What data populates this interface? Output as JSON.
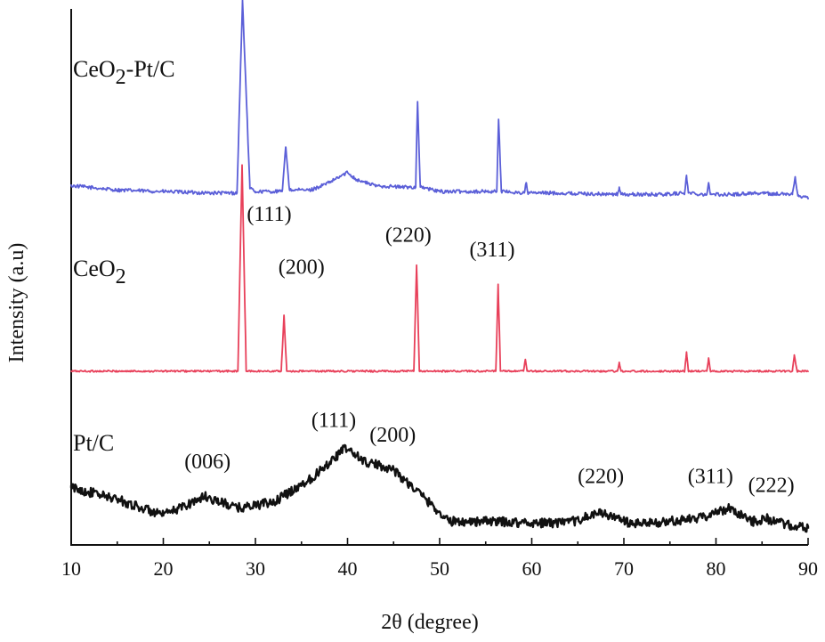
{
  "chart_data": {
    "type": "line",
    "xlabel": "2θ (degree)",
    "ylabel": "Intensity (a.u)",
    "xlim": [
      10,
      90
    ],
    "x_ticks": [
      "10",
      "20",
      "30",
      "40",
      "50",
      "60",
      "70",
      "80",
      "90"
    ],
    "grid": false,
    "colors": {
      "CeO2-Pt/C": "#5b5fd8",
      "CeO2": "#e8405a",
      "Pt/C": "#111111"
    },
    "series": [
      {
        "name": "CeO2-Pt/C",
        "label_main": "CeO",
        "label_sub": "2",
        "label_tail": "-Pt/C",
        "color": "#5b5fd8",
        "baseline": 1.0,
        "noise": 0.06,
        "x": [
          10,
          15,
          20,
          25,
          28.0,
          28.6,
          29.4,
          30,
          32.9,
          33.3,
          33.7,
          36,
          38,
          40,
          41,
          43,
          46,
          47.4,
          47.6,
          47.9,
          50,
          55,
          56.2,
          56.4,
          56.7,
          59.2,
          59.4,
          59.6,
          62,
          69.3,
          69.5,
          69.7,
          74,
          76.6,
          76.8,
          77.0,
          79.0,
          79.2,
          79.4,
          82,
          84,
          88.3,
          88.6,
          88.9,
          90
        ],
        "y": [
          1.0,
          0.85,
          0.8,
          0.75,
          0.75,
          7.3,
          0.9,
          0.8,
          0.8,
          2.3,
          0.85,
          0.85,
          1.1,
          1.45,
          1.2,
          1.0,
          0.95,
          0.95,
          3.85,
          0.95,
          0.8,
          0.8,
          0.8,
          3.25,
          0.8,
          0.75,
          1.1,
          0.75,
          0.75,
          0.7,
          0.95,
          0.7,
          0.7,
          0.75,
          1.35,
          0.75,
          0.7,
          1.1,
          0.7,
          0.7,
          0.75,
          0.7,
          1.3,
          0.65,
          0.6
        ]
      },
      {
        "name": "CeO2",
        "label_main": "CeO",
        "label_sub": "2",
        "label_tail": "",
        "color": "#e8405a",
        "baseline": -4.3,
        "noise": 0.03,
        "x": [
          10,
          20,
          28.1,
          28.55,
          29.0,
          32.8,
          33.1,
          33.4,
          47.2,
          47.5,
          47.8,
          56.1,
          56.35,
          56.6,
          59.1,
          59.3,
          59.5,
          69.3,
          69.5,
          69.7,
          76.6,
          76.8,
          77.0,
          79.0,
          79.2,
          79.4,
          88.3,
          88.5,
          88.8,
          90
        ],
        "y": [
          0.0,
          0.0,
          0.0,
          7.0,
          0.0,
          0.0,
          1.9,
          0.0,
          0.0,
          3.6,
          0.0,
          0.0,
          2.95,
          0.0,
          0.0,
          0.4,
          0.0,
          0.0,
          0.3,
          0.0,
          0.0,
          0.65,
          0.0,
          0.0,
          0.45,
          0.0,
          0.0,
          0.55,
          0.0,
          0.0
        ]
      },
      {
        "name": "Pt/C",
        "label_main": "Pt/C",
        "label_sub": "",
        "label_tail": "",
        "color": "#111111",
        "baseline": -9.5,
        "noise": 0.16,
        "x": [
          10,
          15,
          20,
          24.5,
          28,
          32,
          36,
          39.8,
          42,
          44.8,
          48,
          51,
          55,
          60,
          64,
          67.5,
          71,
          75,
          78,
          81.5,
          84,
          85.5,
          88,
          90
        ],
        "y": [
          1.25,
          0.85,
          0.3,
          0.95,
          0.55,
          0.75,
          1.55,
          2.6,
          2.1,
          1.9,
          1.0,
          0.1,
          0.1,
          0.05,
          0.05,
          0.4,
          0.0,
          0.1,
          0.2,
          0.55,
          0.1,
          0.2,
          -0.05,
          -0.15
        ]
      }
    ],
    "peak_labels": [
      {
        "text": "(111)",
        "x": 31.5,
        "series": "CeO2",
        "y": 5.1
      },
      {
        "text": "(200)",
        "x": 35.0,
        "series": "CeO2",
        "y": 3.3
      },
      {
        "text": "(220)",
        "x": 46.6,
        "series": "CeO2",
        "y": 4.4
      },
      {
        "text": "(311)",
        "x": 55.7,
        "series": "CeO2",
        "y": 3.9
      },
      {
        "text": "(006)",
        "x": 24.8,
        "series": "Pt/C",
        "y": 1.9
      },
      {
        "text": "(111)",
        "x": 38.5,
        "series": "Pt/C",
        "y": 3.3
      },
      {
        "text": "(200)",
        "x": 44.9,
        "series": "Pt/C",
        "y": 2.8
      },
      {
        "text": "(220)",
        "x": 67.5,
        "series": "Pt/C",
        "y": 1.4
      },
      {
        "text": "(311)",
        "x": 79.4,
        "series": "Pt/C",
        "y": 1.4
      },
      {
        "text": "(222)",
        "x": 86.0,
        "series": "Pt/C",
        "y": 1.1
      }
    ]
  }
}
